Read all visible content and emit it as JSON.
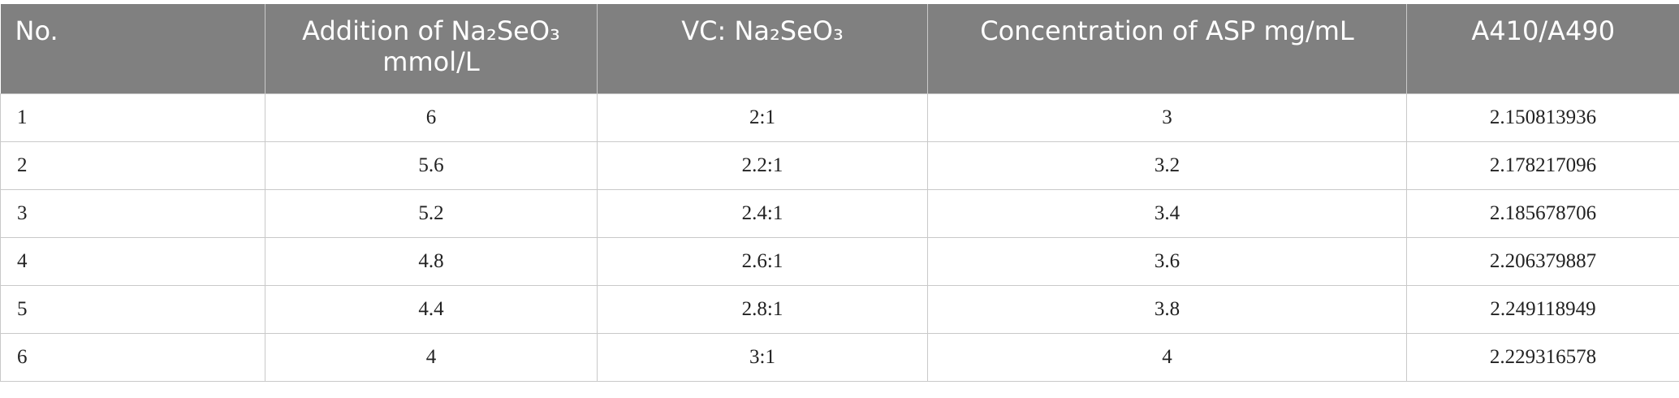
{
  "table": {
    "columns": [
      "No.",
      "Addition of Na₂SeO₃ mmol/L",
      "VC: Na₂SeO₃",
      "Concentration of ASP mg/mL",
      "A410/A490"
    ],
    "rows": [
      [
        1,
        6,
        "2:1",
        3,
        2.150813936
      ],
      [
        2,
        5.6,
        "2.2:1",
        3.2,
        2.178217096
      ],
      [
        3,
        5.2,
        "2.4:1",
        3.4,
        2.185678706
      ],
      [
        4,
        4.8,
        "2.6:1",
        3.6,
        2.206379887
      ],
      [
        5,
        4.4,
        "2.8:1",
        3.8,
        2.249118949
      ],
      [
        6,
        4,
        "3:1",
        4,
        2.229316578
      ]
    ]
  }
}
